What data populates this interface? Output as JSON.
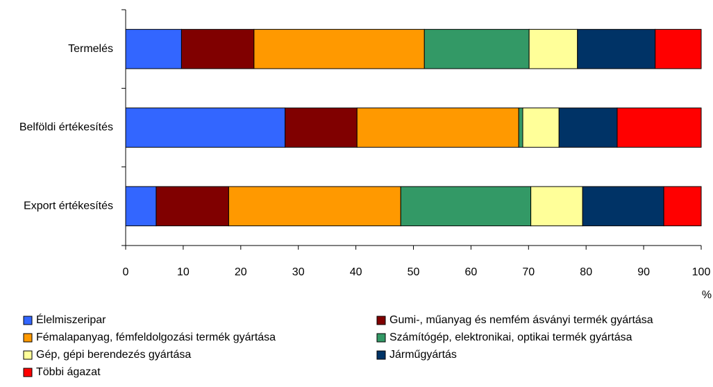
{
  "chart_data": {
    "type": "stacked_barh",
    "categories": [
      "Termelés",
      "Belföldi értékesítés",
      "Export értékesítés"
    ],
    "series": [
      {
        "name": "Élelmiszeripar",
        "color": "#3366ff",
        "values": [
          9.7,
          27.7,
          5.3
        ]
      },
      {
        "name": "Gumi-, műanyag és nemfém ásványi termék gyártása",
        "color": "#800000",
        "values": [
          12.6,
          12.5,
          12.6
        ]
      },
      {
        "name": "Fémalapanyag, fémfeldolgozási termék gyártása",
        "color": "#ff9900",
        "values": [
          29.6,
          28.1,
          29.9
        ]
      },
      {
        "name": "Számítógép, elektronikai, optikai termék gyártása",
        "color": "#339966",
        "values": [
          18.2,
          0.7,
          22.6
        ]
      },
      {
        "name": "Gép, gépi berendezés gyártása",
        "color": "#ffff99",
        "values": [
          8.4,
          6.3,
          9.0
        ]
      },
      {
        "name": "Járműgyártás",
        "color": "#003366",
        "values": [
          13.5,
          10.1,
          14.1
        ]
      },
      {
        "name": "Többi ágazat",
        "color": "#ff0000",
        "values": [
          8.0,
          14.6,
          6.5
        ]
      }
    ],
    "xlabel": "%",
    "xlim": [
      0,
      100
    ],
    "xticks": [
      0,
      10,
      20,
      30,
      40,
      50,
      60,
      70,
      80,
      90,
      100
    ]
  }
}
